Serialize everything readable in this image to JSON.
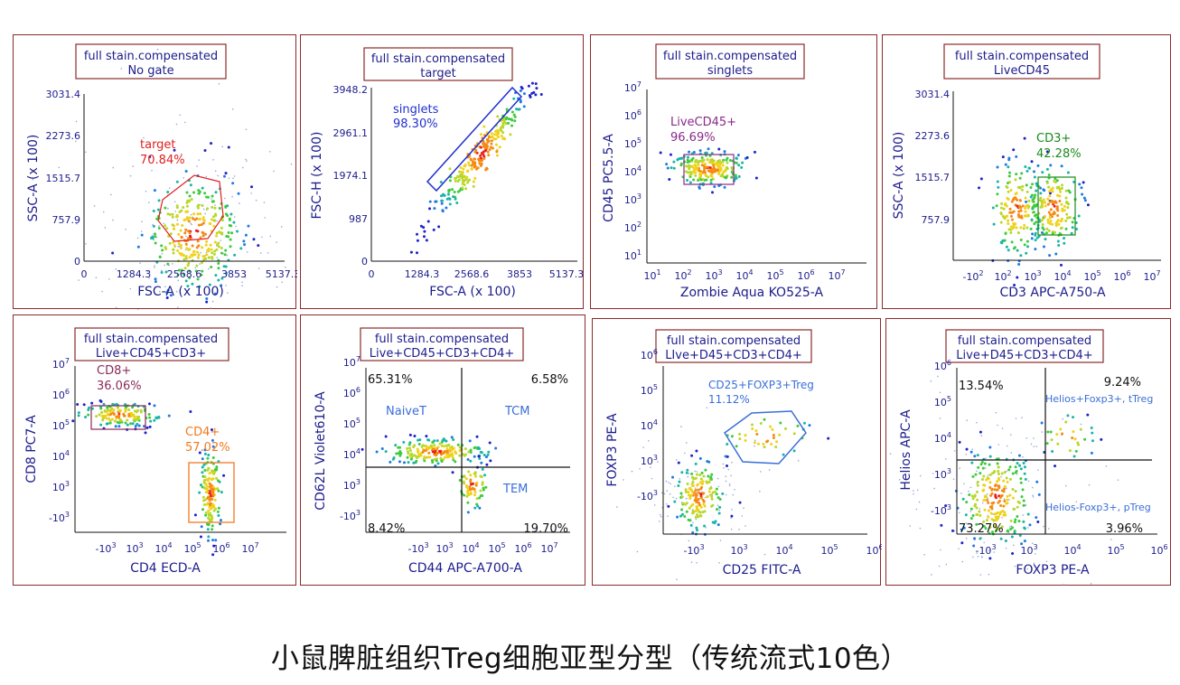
{
  "caption": "小鼠脾脏组织Treg细胞亚型分型（传统流式10色）",
  "colors": {
    "frame": "#8b2a2a",
    "axis_text": "#1c1c8c",
    "blue_label": "#3a6fd8",
    "red_label": "#e02020",
    "green_label": "#1a8a1a",
    "purple_label": "#8a2a8a",
    "orange_label": "#f07a20",
    "dark_text": "#111111"
  },
  "chart_data": [
    {
      "type": "scatter",
      "title": [
        "full stain.compensated",
        "No gate"
      ],
      "xlabel": "FSC-A (x 100)",
      "ylabel": "SSC-A (x 100)",
      "scale": "linear",
      "xlim": [
        0,
        5137.3
      ],
      "ylim": [
        0,
        3031.4
      ],
      "xticks": [
        "0",
        "1284.3",
        "2568.6",
        "3853",
        "5137.3"
      ],
      "yticks": [
        "0",
        "757.9",
        "1515.7",
        "2273.6",
        "3031.4"
      ],
      "gates": [
        {
          "name": "target",
          "value": "70.84%",
          "color": "#e02020",
          "shape": "polygon"
        }
      ],
      "population_centers": [
        [
          2700,
          750
        ]
      ]
    },
    {
      "type": "scatter",
      "title": [
        "full stain.compensated",
        "target"
      ],
      "xlabel": "FSC-A (x 100)",
      "ylabel": "FSC-H (x 100)",
      "scale": "linear",
      "xlim": [
        0,
        5137.3
      ],
      "ylim": [
        0,
        3948.2
      ],
      "xticks": [
        "0",
        "1284.3",
        "2568.6",
        "3853",
        "5137.3"
      ],
      "yticks": [
        "0",
        "987",
        "1974.1",
        "2961.1",
        "3948.2"
      ],
      "gates": [
        {
          "name": "singlets",
          "value": "98.30%",
          "color": "#2030d0",
          "shape": "polygon"
        }
      ],
      "population_centers": [
        [
          2750,
          2750
        ]
      ]
    },
    {
      "type": "scatter",
      "title": [
        "full stain.compensated",
        "singlets"
      ],
      "xlabel": "Zombie Aqua KO525-A",
      "ylabel": "CD45 PC5.5-A",
      "scale": "log",
      "xlim": [
        1,
        7
      ],
      "ylim": [
        1,
        7
      ],
      "gates": [
        {
          "name": "LiveCD45+",
          "value": "96.69%",
          "color": "#8a2a8a",
          "shape": "rect"
        }
      ],
      "population_centers": [
        [
          2.5,
          4.3
        ]
      ]
    },
    {
      "type": "scatter",
      "title": [
        "full stain.compensated",
        "LiveCD45"
      ],
      "xlabel": "CD3 APC-A750-A",
      "ylabel": "SSC-A (x 100)",
      "scale": "log-x",
      "xlim": [
        -2,
        7
      ],
      "ylim": [
        0,
        3031.4
      ],
      "yticks": [
        "757.9",
        "1515.7",
        "2273.6",
        "3031.4"
      ],
      "gates": [
        {
          "name": "CD3+",
          "value": "42.28%",
          "color": "#1a8a1a",
          "shape": "rect"
        }
      ],
      "population_centers": [
        [
          3.2,
          900
        ],
        [
          4.6,
          900
        ]
      ]
    },
    {
      "type": "scatter",
      "title": [
        "full stain.compensated",
        "Live+CD45+CD3+"
      ],
      "xlabel": "CD4 ECD-A",
      "ylabel": "CD8 PC7-A",
      "scale": "log",
      "xlim": [
        -3,
        7
      ],
      "ylim": [
        -3,
        7
      ],
      "gates": [
        {
          "name": "CD8+",
          "value": "36.06%",
          "color": "#8a2a5a",
          "shape": "rect"
        },
        {
          "name": "CD4+",
          "value": "57.02%",
          "color": "#f07a20",
          "shape": "rect"
        }
      ],
      "population_centers": [
        [
          1.2,
          5.3
        ],
        [
          5.0,
          2.8
        ]
      ]
    },
    {
      "type": "scatter",
      "title": [
        "full stain.compensated",
        "Live+CD45+CD3+CD4+"
      ],
      "xlabel": "CD44 APC-A700-A",
      "ylabel": "CD62L Violet610-A",
      "scale": "log",
      "xlim": [
        -3,
        7
      ],
      "ylim": [
        -3,
        7
      ],
      "quadrants": {
        "top_left": "65.31%",
        "top_right": "6.58%",
        "bottom_left": "8.42%",
        "bottom_right": "19.70%"
      },
      "region_labels": [
        "NaiveT",
        "TCM",
        "TEM"
      ],
      "population_centers": [
        [
          3.2,
          4.4
        ],
        [
          4.4,
          3.2
        ]
      ]
    },
    {
      "type": "scatter",
      "title": [
        "full stain.compensated",
        "LIve+D45+CD3+CD4+"
      ],
      "xlabel": "CD25 FITC-A",
      "ylabel": "FOXP3 PE-A",
      "scale": "log",
      "xlim": [
        -3,
        6
      ],
      "ylim": [
        -3,
        6
      ],
      "gates": [
        {
          "name": "CD25+FOXP3+Treg",
          "value": "11.12%",
          "color": "#3a6fd8",
          "shape": "polygon"
        }
      ],
      "population_centers": [
        [
          -1.5,
          1.0
        ],
        [
          4.5,
          4.4
        ]
      ]
    },
    {
      "type": "scatter",
      "title": [
        "full stain.compensated",
        "Live+D45+CD3+CD4+"
      ],
      "xlabel": "FOXP3 PE-A",
      "ylabel": "Helios APC-A",
      "scale": "log",
      "xlim": [
        -3,
        6
      ],
      "ylim": [
        -3,
        6
      ],
      "quadrants": {
        "top_left": "13.54%",
        "top_right": "9.24%",
        "bottom_left": "73.27%",
        "bottom_right": "3.96%"
      },
      "region_labels": [
        "Helios+Foxp3+, tTreg",
        "Helios-Foxp3+, pTreg"
      ],
      "population_centers": [
        [
          0.0,
          1.3
        ],
        [
          4.4,
          4.6
        ]
      ]
    }
  ],
  "panels": [
    {
      "title1": "full stain.compensated",
      "title2": "No gate",
      "xlabel": "FSC-A (x 100)",
      "ylabel": "SSC-A (x 100)",
      "xticks": [
        "0",
        "1284.3",
        "2568.6",
        "3853",
        "5137.3"
      ],
      "yticks": [
        "0",
        "757.9",
        "1515.7",
        "2273.6",
        "3031.4"
      ],
      "gate_name": "target",
      "gate_value": "70.84%"
    },
    {
      "title1": "full stain.compensated",
      "title2": "target",
      "xlabel": "FSC-A (x 100)",
      "ylabel": "FSC-H (x 100)",
      "xticks": [
        "0",
        "1284.3",
        "2568.6",
        "3853",
        "5137.3"
      ],
      "yticks": [
        "0",
        "987",
        "1974.1",
        "2961.1",
        "3948.2"
      ],
      "gate_name": "singlets",
      "gate_value": "98.30%"
    },
    {
      "title1": "full stain.compensated",
      "title2": "singlets",
      "xlabel": "Zombie Aqua KO525-A",
      "ylabel": "CD45 PC5.5-A",
      "gate_name": "LiveCD45+",
      "gate_value": "96.69%"
    },
    {
      "title1": "full stain.compensated",
      "title2": "LiveCD45",
      "xlabel": "CD3 APC-A750-A",
      "ylabel": "SSC-A (x 100)",
      "yticks": [
        "757.9",
        "1515.7",
        "2273.6",
        "3031.4"
      ],
      "gate_name": "CD3+",
      "gate_value": "42.28%"
    },
    {
      "title1": "full stain.compensated",
      "title2": "Live+CD45+CD3+",
      "xlabel": "CD4 ECD-A",
      "ylabel": "CD8 PC7-A",
      "gate_name": "CD8+",
      "gate_value": "36.06%",
      "gate2_name": "CD4+",
      "gate2_value": "57.02%"
    },
    {
      "title1": "full stain.compensated",
      "title2": "Live+CD45+CD3+CD4+",
      "xlabel": "CD44 APC-A700-A",
      "ylabel": "CD62L Violet610-A",
      "q_tl": "65.31%",
      "q_tr": "6.58%",
      "q_bl": "8.42%",
      "q_br": "19.70%",
      "r1": "NaiveT",
      "r2": "TCM",
      "r3": "TEM"
    },
    {
      "title1": "full stain.compensated",
      "title2": "LIve+D45+CD3+CD4+",
      "xlabel": "CD25 FITC-A",
      "ylabel": "FOXP3 PE-A",
      "gate_name": "CD25+FOXP3+Treg",
      "gate_value": "11.12%"
    },
    {
      "title1": "full stain.compensated",
      "title2": "Live+D45+CD3+CD4+",
      "xlabel": "FOXP3 PE-A",
      "ylabel": "Helios APC-A",
      "q_tl": "13.54%",
      "q_tr": "9.24%",
      "q_bl": "73.27%",
      "q_br": "3.96%",
      "r1": "Helios+Foxp3+, tTreg",
      "r2": "Helios-Foxp3+, pTreg"
    }
  ]
}
